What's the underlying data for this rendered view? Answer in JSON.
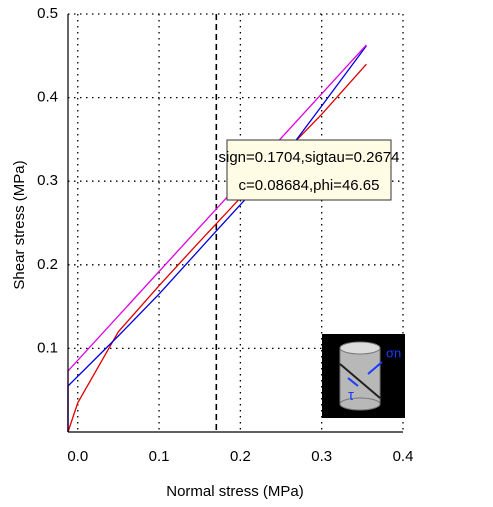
{
  "chart_data": {
    "type": "line",
    "xlabel": "Normal stress (MPa)",
    "ylabel": "Shear stress (MPa)",
    "xlim": [
      -0.012,
      0.4
    ],
    "ylim": [
      0,
      0.5
    ],
    "xticks": [
      {
        "value": 0,
        "label": "0.0"
      },
      0.1,
      0.2,
      0.3,
      0.4
    ],
    "yticks": [
      0.1,
      0.2,
      0.3,
      0.4,
      0.5
    ],
    "grid": true,
    "vline": 0.1704,
    "annotation": [
      "sign=0.1704,sigtau=0.2674",
      "c=0.08684,phi=46.65"
    ],
    "icon_labels": [
      "σn",
      "τ"
    ],
    "series": [
      {
        "color": "#e00000",
        "x": [
          -0.012,
          -0.012,
          0,
          0.05,
          0.1,
          0.15,
          0.2,
          0.25,
          0.3,
          0.355
        ],
        "y": [
          0,
          0.0,
          0.035,
          0.12,
          0.175,
          0.228,
          0.28,
          0.33,
          0.38,
          0.44
        ]
      },
      {
        "color": "#0000e0",
        "x": [
          -0.012,
          -0.012,
          0.05,
          0.1,
          0.17,
          0.25,
          0.3,
          0.355
        ],
        "y": [
          0,
          0.055,
          0.115,
          0.165,
          0.24,
          0.325,
          0.39,
          0.462
        ]
      },
      {
        "color": "#e000e0",
        "x": [
          -0.012,
          -0.012,
          0.355
        ],
        "y": [
          0,
          0.073,
          0.463
        ]
      }
    ]
  }
}
